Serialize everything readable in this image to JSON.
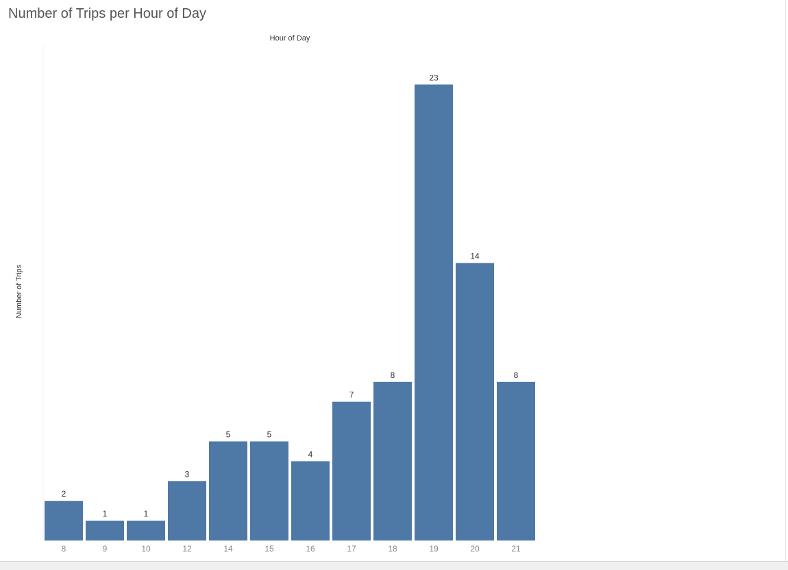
{
  "chart_data": {
    "type": "bar",
    "title": "Number of Trips per Hour of Day",
    "xlabel": "Hour of Day",
    "ylabel": "Number of Trips",
    "categories": [
      "8",
      "9",
      "10",
      "12",
      "14",
      "15",
      "16",
      "17",
      "18",
      "19",
      "20",
      "21"
    ],
    "values": [
      2,
      1,
      1,
      3,
      5,
      5,
      4,
      7,
      8,
      23,
      14,
      8
    ],
    "ylim": [
      0,
      25
    ],
    "grid": false,
    "legend": "none",
    "bar_color": "#4e79a7"
  }
}
